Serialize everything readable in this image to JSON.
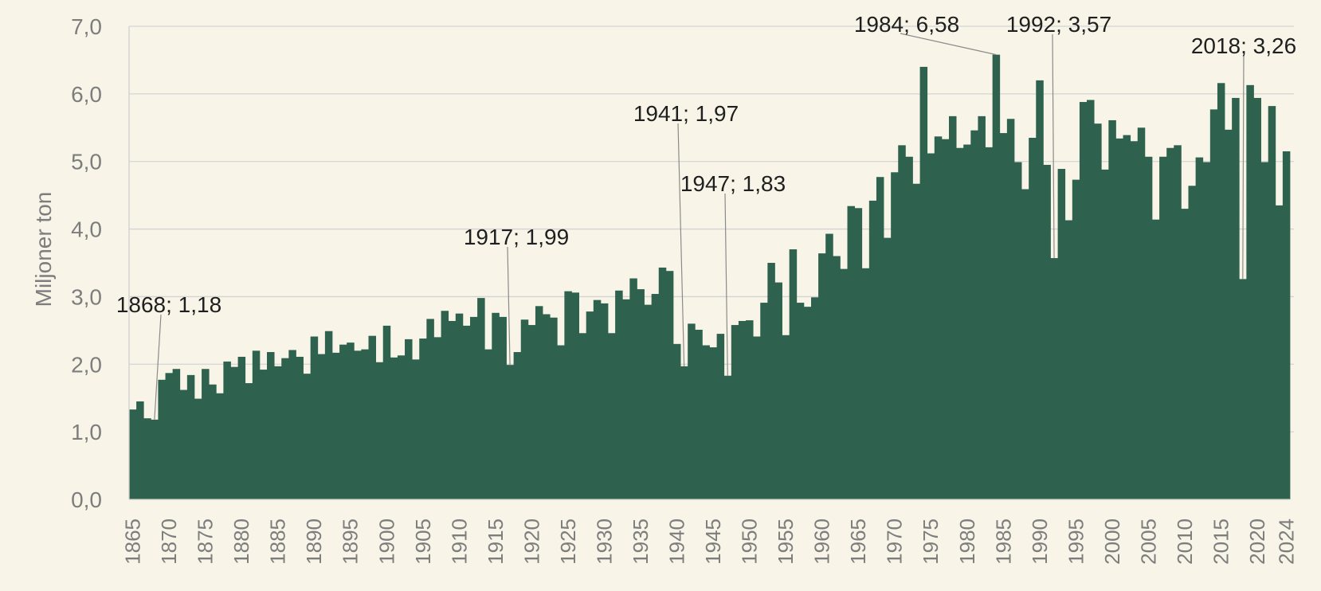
{
  "chart_data": {
    "type": "bar",
    "ylabel": "Miljoner ton",
    "ylim": [
      0,
      7
    ],
    "y_ticks": [
      "0,0",
      "1,0",
      "2,0",
      "3,0",
      "4,0",
      "5,0",
      "6,0",
      "7,0"
    ],
    "x_tick_labels": [
      "1865",
      "1870",
      "1875",
      "1880",
      "1885",
      "1890",
      "1895",
      "1900",
      "1905",
      "1910",
      "1915",
      "1920",
      "1925",
      "1930",
      "1935",
      "1940",
      "1945",
      "1950",
      "1955",
      "1960",
      "1965",
      "1970",
      "1975",
      "1980",
      "1985",
      "1990",
      "1995",
      "2000",
      "2005",
      "2010",
      "2015",
      "2020",
      "2024"
    ],
    "grid": true,
    "color": "#2e614e",
    "x": [
      1865,
      1866,
      1867,
      1868,
      1869,
      1870,
      1871,
      1872,
      1873,
      1874,
      1875,
      1876,
      1877,
      1878,
      1879,
      1880,
      1881,
      1882,
      1883,
      1884,
      1885,
      1886,
      1887,
      1888,
      1889,
      1890,
      1891,
      1892,
      1893,
      1894,
      1895,
      1896,
      1897,
      1898,
      1899,
      1900,
      1901,
      1902,
      1903,
      1904,
      1905,
      1906,
      1907,
      1908,
      1909,
      1910,
      1911,
      1912,
      1913,
      1914,
      1915,
      1916,
      1917,
      1918,
      1919,
      1920,
      1921,
      1922,
      1923,
      1924,
      1925,
      1926,
      1927,
      1928,
      1929,
      1930,
      1931,
      1932,
      1933,
      1934,
      1935,
      1936,
      1937,
      1938,
      1939,
      1940,
      1941,
      1942,
      1943,
      1944,
      1945,
      1946,
      1947,
      1948,
      1949,
      1950,
      1951,
      1952,
      1953,
      1954,
      1955,
      1956,
      1957,
      1958,
      1959,
      1960,
      1961,
      1962,
      1963,
      1964,
      1965,
      1966,
      1967,
      1968,
      1969,
      1970,
      1971,
      1972,
      1973,
      1974,
      1975,
      1976,
      1977,
      1978,
      1979,
      1980,
      1981,
      1982,
      1983,
      1984,
      1985,
      1986,
      1987,
      1988,
      1989,
      1990,
      1991,
      1992,
      1993,
      1994,
      1995,
      1996,
      1997,
      1998,
      1999,
      2000,
      2001,
      2002,
      2003,
      2004,
      2005,
      2006,
      2007,
      2008,
      2009,
      2010,
      2011,
      2012,
      2013,
      2014,
      2015,
      2016,
      2017,
      2018,
      2019,
      2020,
      2021,
      2022,
      2023,
      2024
    ],
    "values": [
      1.33,
      1.45,
      1.2,
      1.18,
      1.77,
      1.87,
      1.93,
      1.62,
      1.84,
      1.49,
      1.93,
      1.7,
      1.57,
      2.04,
      1.96,
      2.11,
      1.72,
      2.2,
      1.92,
      2.18,
      1.97,
      2.09,
      2.21,
      2.11,
      1.86,
      2.41,
      2.15,
      2.49,
      2.17,
      2.29,
      2.32,
      2.2,
      2.22,
      2.42,
      2.03,
      2.57,
      2.1,
      2.13,
      2.37,
      2.07,
      2.38,
      2.67,
      2.4,
      2.79,
      2.64,
      2.75,
      2.57,
      2.7,
      2.98,
      2.22,
      2.76,
      2.7,
      1.99,
      2.18,
      2.66,
      2.58,
      2.86,
      2.74,
      2.69,
      2.28,
      3.08,
      3.06,
      2.46,
      2.78,
      2.95,
      2.9,
      2.46,
      3.09,
      2.96,
      3.27,
      3.11,
      2.88,
      3.04,
      3.43,
      3.38,
      2.3,
      1.97,
      2.6,
      2.51,
      2.28,
      2.25,
      2.45,
      1.83,
      2.58,
      2.64,
      2.65,
      2.41,
      2.91,
      3.5,
      3.21,
      2.43,
      3.7,
      2.91,
      2.85,
      2.99,
      3.64,
      3.93,
      3.6,
      3.41,
      4.34,
      4.31,
      3.42,
      4.42,
      4.77,
      3.87,
      4.84,
      5.24,
      5.07,
      4.67,
      6.4,
      5.12,
      5.37,
      5.33,
      5.67,
      5.2,
      5.25,
      5.46,
      5.67,
      5.21,
      6.58,
      5.42,
      5.63,
      4.99,
      4.59,
      5.35,
      6.2,
      4.95,
      3.57,
      4.89,
      4.13,
      4.73,
      5.88,
      5.91,
      5.56,
      4.88,
      5.61,
      5.34,
      5.39,
      5.3,
      5.5,
      5.07,
      4.14,
      5.07,
      5.2,
      5.24,
      4.3,
      4.64,
      5.06,
      4.99,
      5.77,
      6.16,
      5.47,
      5.94,
      3.26,
      6.13,
      5.94,
      4.99,
      5.82,
      4.35,
      5.15
    ],
    "annotations": [
      {
        "year": 1868,
        "label": "1868; 1,18"
      },
      {
        "year": 1917,
        "label": "1917; 1,99"
      },
      {
        "year": 1941,
        "label": "1941; 1,97"
      },
      {
        "year": 1947,
        "label": "1947; 1,83"
      },
      {
        "year": 1984,
        "label": "1984; 6,58"
      },
      {
        "year": 1992,
        "label": "1992; 3,57"
      },
      {
        "year": 2018,
        "label": "2018; 3,26"
      }
    ]
  }
}
